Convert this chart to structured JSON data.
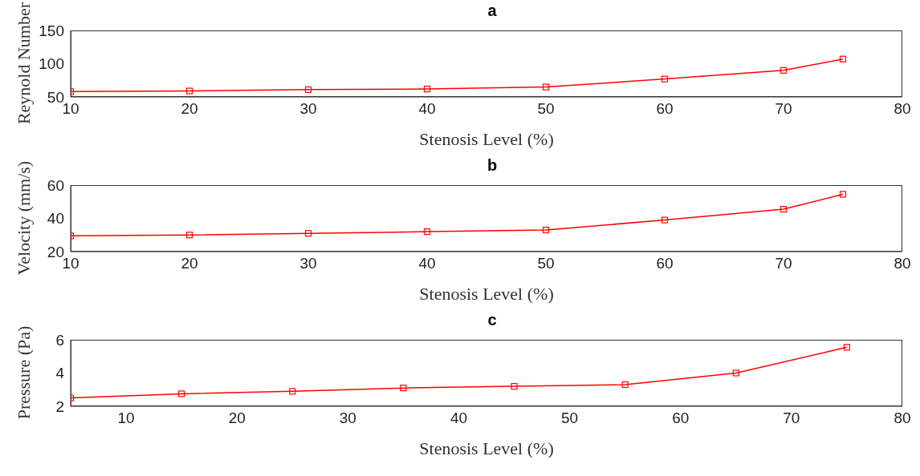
{
  "chart_data": [
    {
      "type": "line",
      "title": "a",
      "xlabel": "Stenosis Level (%)",
      "ylabel": "Reynold Number",
      "x": [
        10,
        20,
        30,
        40,
        50,
        60,
        70,
        75
      ],
      "xlim": [
        10,
        80
      ],
      "xticks": [
        10,
        20,
        30,
        40,
        50,
        60,
        70,
        80
      ],
      "ylim": [
        50,
        150
      ],
      "yticks": [
        50,
        100,
        150
      ],
      "marker": "square",
      "series": [
        {
          "color": "#ff0000",
          "values": [
            58,
            59,
            61,
            62,
            65,
            77,
            90,
            107
          ]
        }
      ]
    },
    {
      "type": "line",
      "title": "b",
      "xlabel": "Stenosis Level (%)",
      "ylabel": "Velocity (mm/s)",
      "x": [
        10,
        20,
        30,
        40,
        50,
        60,
        70,
        75
      ],
      "xlim": [
        10,
        80
      ],
      "xticks": [
        10,
        20,
        30,
        40,
        50,
        60,
        70,
        80
      ],
      "ylim": [
        20,
        60
      ],
      "yticks": [
        20,
        40,
        60
      ],
      "marker": "square",
      "series": [
        {
          "color": "#ff0000",
          "values": [
            29.5,
            30,
            31,
            32,
            33,
            39,
            45.5,
            54.5
          ]
        }
      ]
    },
    {
      "type": "line",
      "title": "c",
      "xlabel": "Stenosis Level (%)",
      "ylabel": "Pressure (Pa)",
      "x": [
        5,
        15,
        25,
        35,
        45,
        55,
        65,
        75
      ],
      "xlim": [
        5,
        80
      ],
      "xticks": [
        10,
        20,
        30,
        40,
        50,
        60,
        70,
        80
      ],
      "ylim": [
        2,
        6
      ],
      "yticks": [
        2,
        4,
        6
      ],
      "marker": "square",
      "series": [
        {
          "color": "#ff0000",
          "values": [
            2.5,
            2.75,
            2.9,
            3.1,
            3.2,
            3.3,
            4.0,
            5.55
          ]
        }
      ]
    }
  ]
}
